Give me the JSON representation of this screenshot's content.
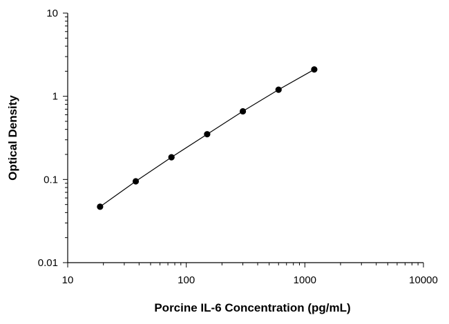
{
  "chart_data": {
    "type": "scatter",
    "title": "",
    "xlabel": "Porcine IL-6 Concentration (pg/mL)",
    "ylabel": "Optical Density",
    "x_scale": "log",
    "y_scale": "log",
    "xlim": [
      10,
      10000
    ],
    "ylim": [
      0.01,
      10
    ],
    "x_ticks": [
      "10",
      "100",
      "1000",
      "10000"
    ],
    "y_ticks": [
      "10",
      "1",
      "0.1",
      "0.01"
    ],
    "grid": false,
    "legend": "none",
    "trend_line": "fitted curve through points",
    "series": [
      {
        "x": [
          18.75,
          37.5,
          75,
          150,
          300,
          600,
          1200
        ],
        "y": [
          0.047,
          0.095,
          0.185,
          0.35,
          0.66,
          1.2,
          2.1
        ]
      }
    ]
  }
}
